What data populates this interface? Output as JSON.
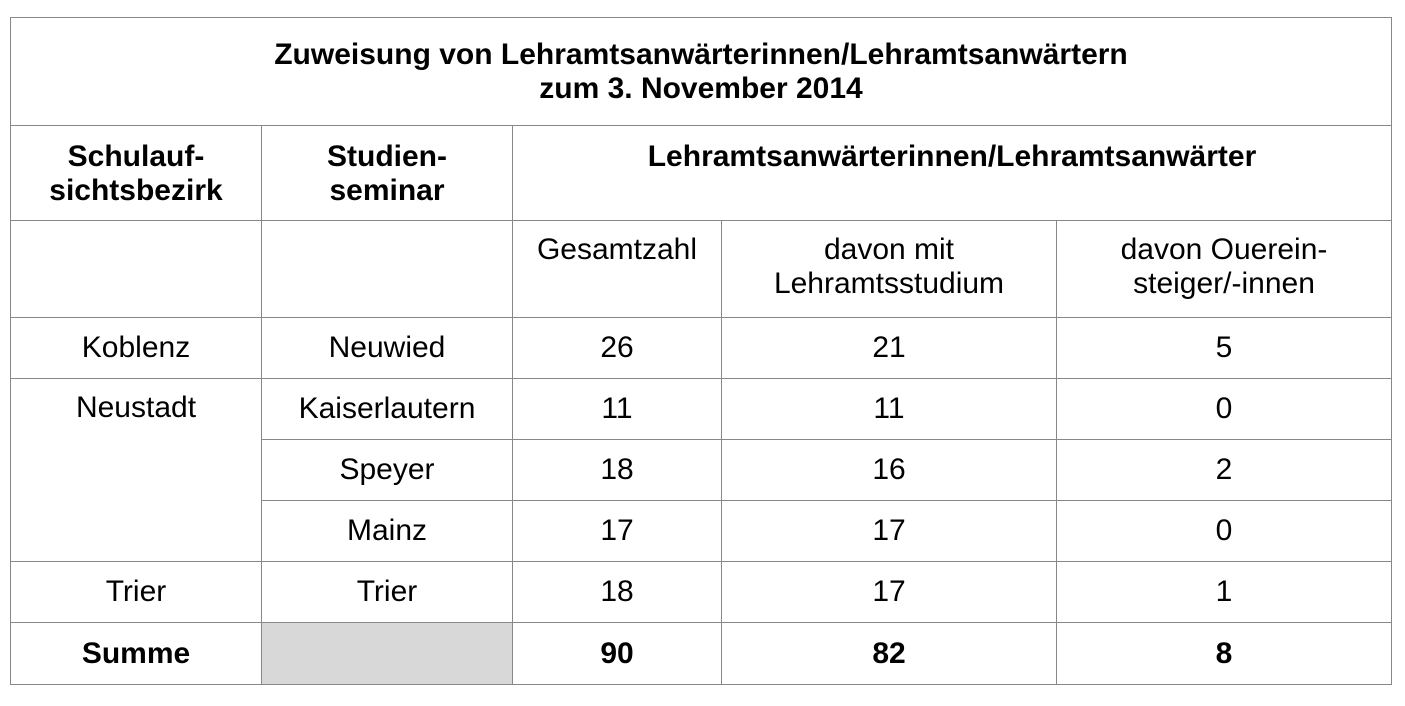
{
  "title": {
    "line1": "Zuweisung von Lehramtsanwärterinnen/Lehramtsanwärtern",
    "line2": "zum 3. November 2014"
  },
  "header": {
    "bezirk_line1": "Schulauf-",
    "bezirk_line2": "sichtsbezirk",
    "seminar_line1": "Studien-",
    "seminar_line2": "seminar",
    "group": "Lehramtsanwärterinnen/Lehramtsanwärter"
  },
  "subheader": {
    "gesamt": "Gesamtzahl",
    "lehramt_line1": "davon mit",
    "lehramt_line2": "Lehramtsstudium",
    "quer_line1": "davon Ouerein-",
    "quer_line2": "steiger/-innen"
  },
  "rows": [
    {
      "bezirk": "Koblenz",
      "seminar": "Neuwied",
      "gesamt": "26",
      "lehramt": "21",
      "quer": "5"
    },
    {
      "bezirk": "Neustadt",
      "seminar": "Kaiserlautern",
      "gesamt": "11",
      "lehramt": "11",
      "quer": "0"
    },
    {
      "bezirk": "",
      "seminar": "Speyer",
      "gesamt": "18",
      "lehramt": "16",
      "quer": "2"
    },
    {
      "bezirk": "",
      "seminar": "Mainz",
      "gesamt": "17",
      "lehramt": "17",
      "quer": "0"
    },
    {
      "bezirk": "Trier",
      "seminar": "Trier",
      "gesamt": "18",
      "lehramt": "17",
      "quer": "1"
    }
  ],
  "sum": {
    "label": "Summe",
    "gesamt": "90",
    "lehramt": "82",
    "quer": "8"
  }
}
